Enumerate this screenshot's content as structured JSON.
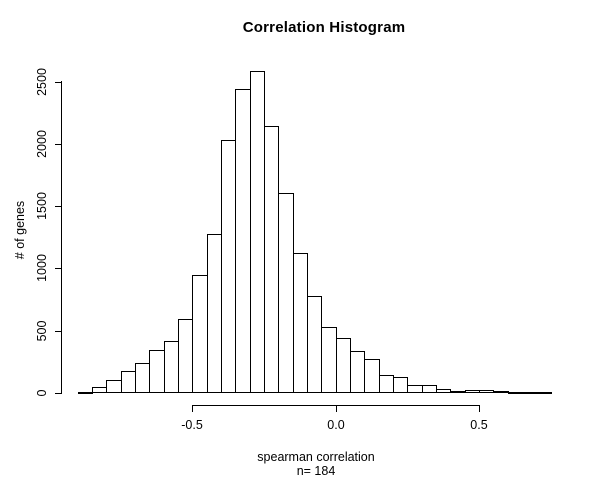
{
  "colors": {
    "background": "#ffffff",
    "bar_fill": "#ffffff",
    "bar_stroke": "#000000",
    "text": "#000000"
  },
  "chart_data": {
    "type": "bar",
    "subtype": "histogram",
    "title": "Correlation Histogram",
    "xlabel": "spearman correlation",
    "sublabel": "n= 184",
    "ylabel": "# of genes",
    "bins": {
      "start": -0.9,
      "width": 0.05,
      "counts": [
        0,
        40,
        100,
        170,
        235,
        335,
        413,
        585,
        940,
        1265,
        2020,
        2435,
        2580,
        2135,
        1600,
        1115,
        770,
        525,
        435,
        330,
        265,
        140,
        120,
        55,
        55,
        25,
        12,
        15,
        14,
        10,
        3,
        2,
        1
      ]
    },
    "x_ticks": [
      -0.5,
      0.0,
      0.5
    ],
    "x_tick_labels": [
      "-0.5",
      "0.0",
      "0.5"
    ],
    "y_ticks": [
      0,
      500,
      1000,
      1500,
      2000,
      2500
    ],
    "y_tick_labels": [
      "0",
      "500",
      "1000",
      "1500",
      "2000",
      "2500"
    ],
    "xlim": [
      -0.9,
      0.75
    ],
    "ylim": [
      0,
      2500
    ],
    "grid": false,
    "legend": null
  }
}
